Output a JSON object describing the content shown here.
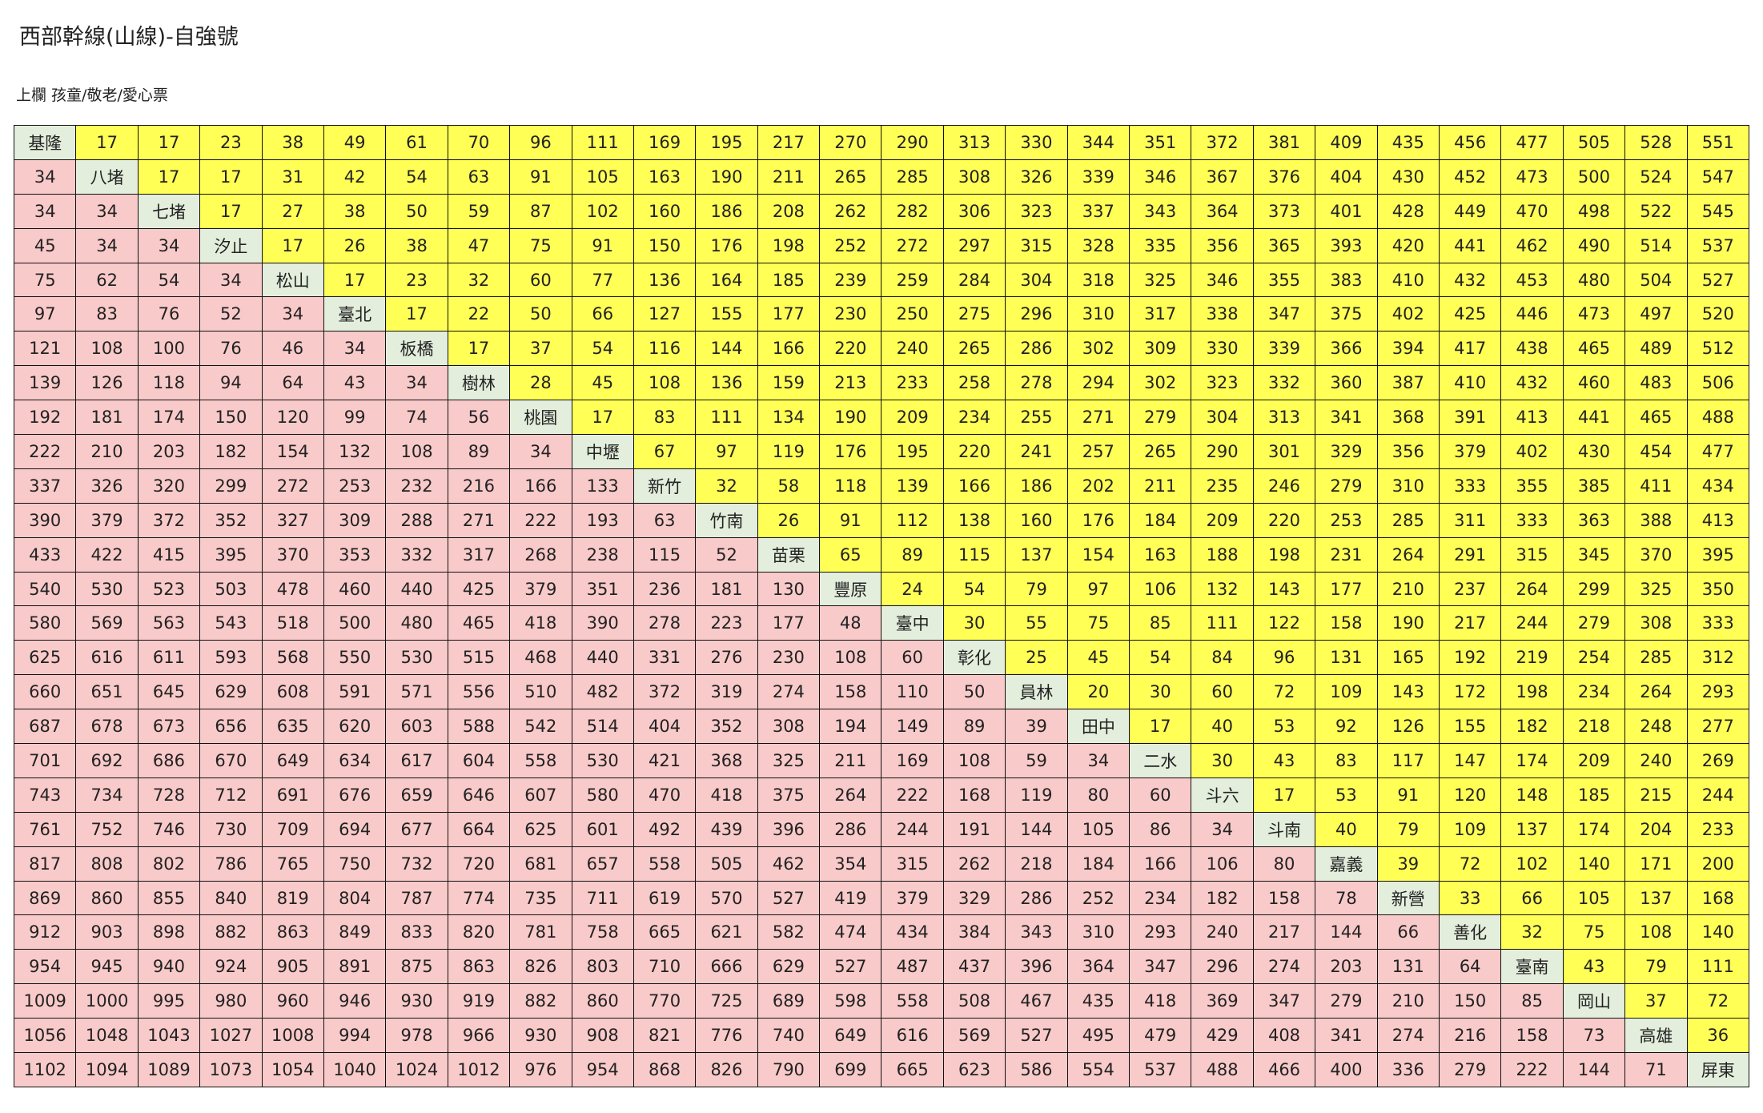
{
  "header": {
    "title": "西部幹線(山線)-自強號",
    "subtitle": "上欄 孩童/敬老/愛心票"
  },
  "table": {
    "rows": [
      [
        "基隆",
        17,
        17,
        23,
        38,
        49,
        61,
        70,
        96,
        111,
        169,
        195,
        217,
        270,
        290,
        313,
        330,
        344,
        351,
        372,
        381,
        409,
        435,
        456,
        477,
        505,
        528,
        551
      ],
      [
        34,
        "八堵",
        17,
        17,
        31,
        42,
        54,
        63,
        91,
        105,
        163,
        190,
        211,
        265,
        285,
        308,
        326,
        339,
        346,
        367,
        376,
        404,
        430,
        452,
        473,
        500,
        524,
        547
      ],
      [
        34,
        34,
        "七堵",
        17,
        27,
        38,
        50,
        59,
        87,
        102,
        160,
        186,
        208,
        262,
        282,
        306,
        323,
        337,
        343,
        364,
        373,
        401,
        428,
        449,
        470,
        498,
        522,
        545
      ],
      [
        45,
        34,
        34,
        "汐止",
        17,
        26,
        38,
        47,
        75,
        91,
        150,
        176,
        198,
        252,
        272,
        297,
        315,
        328,
        335,
        356,
        365,
        393,
        420,
        441,
        462,
        490,
        514,
        537
      ],
      [
        75,
        62,
        54,
        34,
        "松山",
        17,
        23,
        32,
        60,
        77,
        136,
        164,
        185,
        239,
        259,
        284,
        304,
        318,
        325,
        346,
        355,
        383,
        410,
        432,
        453,
        480,
        504,
        527
      ],
      [
        97,
        83,
        76,
        52,
        34,
        "臺北",
        17,
        22,
        50,
        66,
        127,
        155,
        177,
        230,
        250,
        275,
        296,
        310,
        317,
        338,
        347,
        375,
        402,
        425,
        446,
        473,
        497,
        520
      ],
      [
        121,
        108,
        100,
        76,
        46,
        34,
        "板橋",
        17,
        37,
        54,
        116,
        144,
        166,
        220,
        240,
        265,
        286,
        302,
        309,
        330,
        339,
        366,
        394,
        417,
        438,
        465,
        489,
        512
      ],
      [
        139,
        126,
        118,
        94,
        64,
        43,
        34,
        "樹林",
        28,
        45,
        108,
        136,
        159,
        213,
        233,
        258,
        278,
        294,
        302,
        323,
        332,
        360,
        387,
        410,
        432,
        460,
        483,
        506
      ],
      [
        192,
        181,
        174,
        150,
        120,
        99,
        74,
        56,
        "桃園",
        17,
        83,
        111,
        134,
        190,
        209,
        234,
        255,
        271,
        279,
        304,
        313,
        341,
        368,
        391,
        413,
        441,
        465,
        488
      ],
      [
        222,
        210,
        203,
        182,
        154,
        132,
        108,
        89,
        34,
        "中壢",
        67,
        97,
        119,
        176,
        195,
        220,
        241,
        257,
        265,
        290,
        301,
        329,
        356,
        379,
        402,
        430,
        454,
        477
      ],
      [
        337,
        326,
        320,
        299,
        272,
        253,
        232,
        216,
        166,
        133,
        "新竹",
        32,
        58,
        118,
        139,
        166,
        186,
        202,
        211,
        235,
        246,
        279,
        310,
        333,
        355,
        385,
        411,
        434
      ],
      [
        390,
        379,
        372,
        352,
        327,
        309,
        288,
        271,
        222,
        193,
        63,
        "竹南",
        26,
        91,
        112,
        138,
        160,
        176,
        184,
        209,
        220,
        253,
        285,
        311,
        333,
        363,
        388,
        413
      ],
      [
        433,
        422,
        415,
        395,
        370,
        353,
        332,
        317,
        268,
        238,
        115,
        52,
        "苗栗",
        65,
        89,
        115,
        137,
        154,
        163,
        188,
        198,
        231,
        264,
        291,
        315,
        345,
        370,
        395
      ],
      [
        540,
        530,
        523,
        503,
        478,
        460,
        440,
        425,
        379,
        351,
        236,
        181,
        130,
        "豐原",
        24,
        54,
        79,
        97,
        106,
        132,
        143,
        177,
        210,
        237,
        264,
        299,
        325,
        350
      ],
      [
        580,
        569,
        563,
        543,
        518,
        500,
        480,
        465,
        418,
        390,
        278,
        223,
        177,
        48,
        "臺中",
        30,
        55,
        75,
        85,
        111,
        122,
        158,
        190,
        217,
        244,
        279,
        308,
        333
      ],
      [
        625,
        616,
        611,
        593,
        568,
        550,
        530,
        515,
        468,
        440,
        331,
        276,
        230,
        108,
        60,
        "彰化",
        25,
        45,
        54,
        84,
        96,
        131,
        165,
        192,
        219,
        254,
        285,
        312
      ],
      [
        660,
        651,
        645,
        629,
        608,
        591,
        571,
        556,
        510,
        482,
        372,
        319,
        274,
        158,
        110,
        50,
        "員林",
        20,
        30,
        60,
        72,
        109,
        143,
        172,
        198,
        234,
        264,
        293
      ],
      [
        687,
        678,
        673,
        656,
        635,
        620,
        603,
        588,
        542,
        514,
        404,
        352,
        308,
        194,
        149,
        89,
        39,
        "田中",
        17,
        40,
        53,
        92,
        126,
        155,
        182,
        218,
        248,
        277
      ],
      [
        701,
        692,
        686,
        670,
        649,
        634,
        617,
        604,
        558,
        530,
        421,
        368,
        325,
        211,
        169,
        108,
        59,
        34,
        "二水",
        30,
        43,
        83,
        117,
        147,
        174,
        209,
        240,
        269
      ],
      [
        743,
        734,
        728,
        712,
        691,
        676,
        659,
        646,
        607,
        580,
        470,
        418,
        375,
        264,
        222,
        168,
        119,
        80,
        60,
        "斗六",
        17,
        53,
        91,
        120,
        148,
        185,
        215,
        244
      ],
      [
        761,
        752,
        746,
        730,
        709,
        694,
        677,
        664,
        625,
        601,
        492,
        439,
        396,
        286,
        244,
        191,
        144,
        105,
        86,
        34,
        "斗南",
        40,
        79,
        109,
        137,
        174,
        204,
        233
      ],
      [
        817,
        808,
        802,
        786,
        765,
        750,
        732,
        720,
        681,
        657,
        558,
        505,
        462,
        354,
        315,
        262,
        218,
        184,
        166,
        106,
        80,
        "嘉義",
        39,
        72,
        102,
        140,
        171,
        200
      ],
      [
        869,
        860,
        855,
        840,
        819,
        804,
        787,
        774,
        735,
        711,
        619,
        570,
        527,
        419,
        379,
        329,
        286,
        252,
        234,
        182,
        158,
        78,
        "新營",
        33,
        66,
        105,
        137,
        168
      ],
      [
        912,
        903,
        898,
        882,
        863,
        849,
        833,
        820,
        781,
        758,
        665,
        621,
        582,
        474,
        434,
        384,
        343,
        310,
        293,
        240,
        217,
        144,
        66,
        "善化",
        32,
        75,
        108,
        140
      ],
      [
        954,
        945,
        940,
        924,
        905,
        891,
        875,
        863,
        826,
        803,
        710,
        666,
        629,
        527,
        487,
        437,
        396,
        364,
        347,
        296,
        274,
        203,
        131,
        64,
        "臺南",
        43,
        79,
        111
      ],
      [
        1009,
        1000,
        995,
        980,
        960,
        946,
        930,
        919,
        882,
        860,
        770,
        725,
        689,
        598,
        558,
        508,
        467,
        435,
        418,
        369,
        347,
        279,
        210,
        150,
        85,
        "岡山",
        37,
        72
      ],
      [
        1056,
        1048,
        1043,
        1027,
        1008,
        994,
        978,
        966,
        930,
        908,
        821,
        776,
        740,
        649,
        616,
        569,
        527,
        495,
        479,
        429,
        408,
        341,
        274,
        216,
        158,
        73,
        "高雄",
        36
      ],
      [
        1102,
        1094,
        1089,
        1073,
        1054,
        1040,
        1024,
        1012,
        976,
        954,
        868,
        826,
        790,
        699,
        665,
        623,
        586,
        554,
        537,
        488,
        466,
        400,
        336,
        279,
        222,
        144,
        71,
        "屏東"
      ]
    ]
  }
}
